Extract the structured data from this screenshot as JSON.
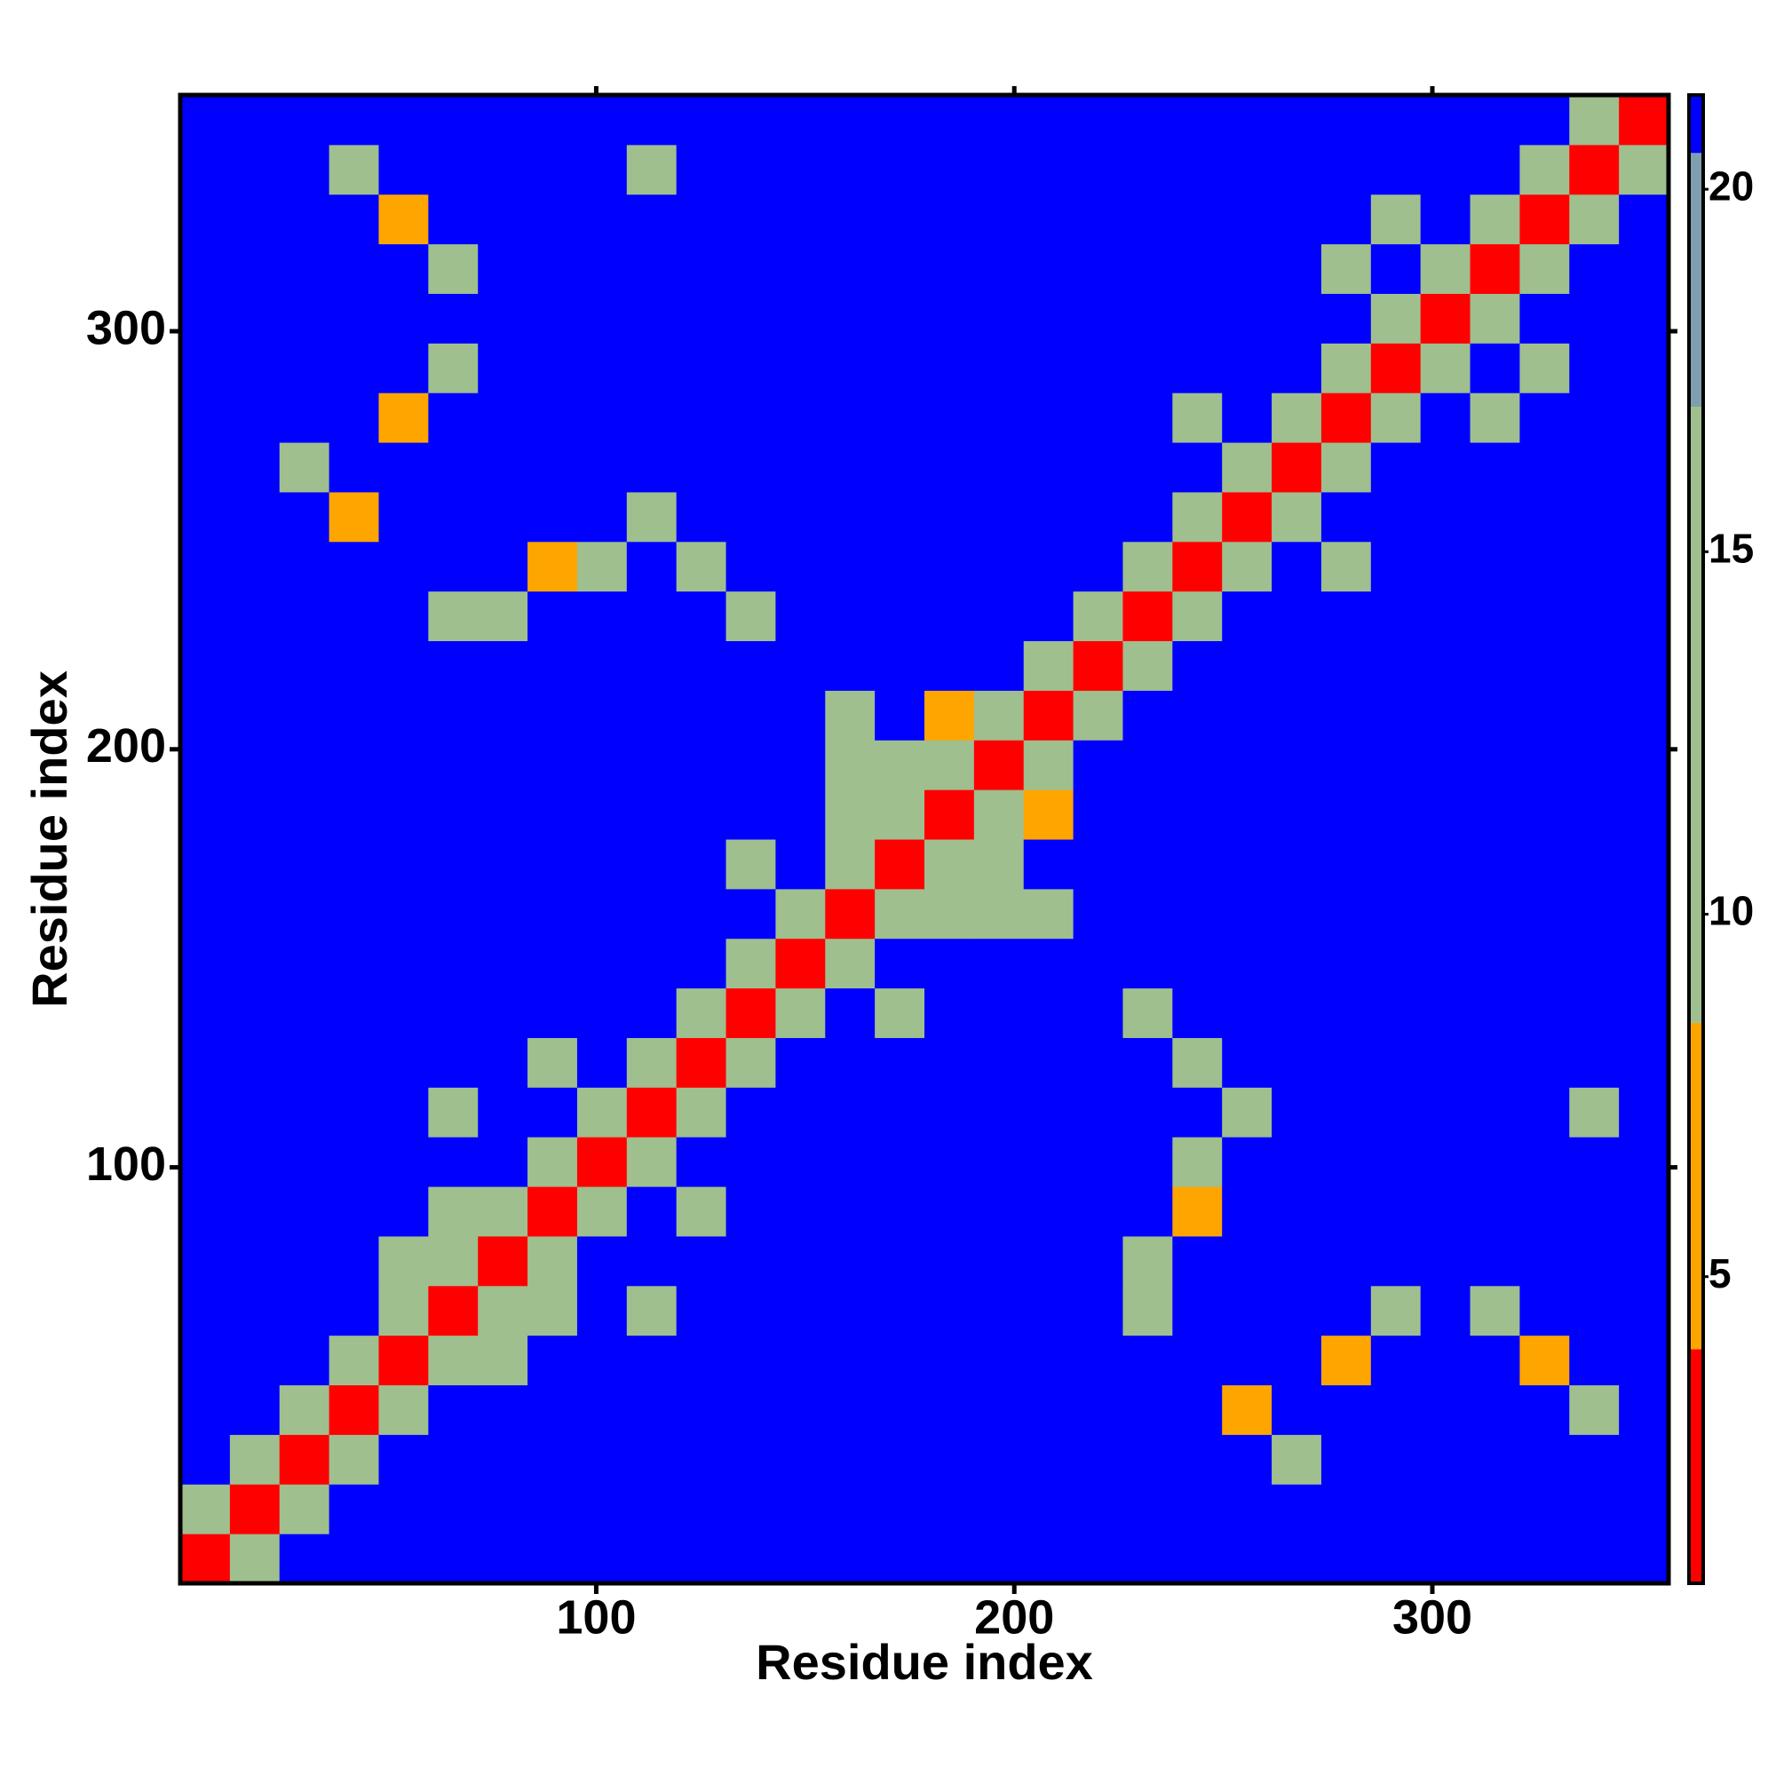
{
  "chart_data": {
    "type": "heatmap",
    "x_label": "Residue index",
    "y_label": "Residue index",
    "xlim": [
      0.5,
      356.5
    ],
    "ylim": [
      0.5,
      356.5
    ],
    "xticks": [
      100,
      200,
      300
    ],
    "yticks": [
      100,
      200,
      300
    ],
    "colorbar": {
      "lim": [
        0.77,
        21.3
      ],
      "ticks": [
        5,
        10,
        15,
        20
      ],
      "bounds": [
        0.77,
        4,
        8.5,
        17,
        20.5,
        21.3
      ],
      "colors": [
        "#ff0000",
        "#ffa500",
        "#9fbf8f",
        "#7f9faf",
        "#0000ff"
      ]
    },
    "z": [
      [
        2,
        12,
        22,
        22,
        22,
        22,
        22,
        22,
        22,
        22,
        22,
        22,
        22,
        22,
        22,
        22,
        22,
        22,
        22,
        22,
        22,
        22,
        22,
        22,
        22,
        22,
        22,
        22,
        22,
        22
      ],
      [
        12,
        2,
        12,
        22,
        22,
        22,
        22,
        22,
        22,
        22,
        22,
        22,
        22,
        22,
        22,
        22,
        22,
        22,
        22,
        22,
        22,
        22,
        22,
        22,
        22,
        22,
        22,
        22,
        22,
        22
      ],
      [
        22,
        12,
        2,
        12,
        22,
        22,
        22,
        22,
        22,
        22,
        22,
        22,
        22,
        22,
        22,
        22,
        22,
        22,
        22,
        22,
        22,
        22,
        12,
        22,
        22,
        22,
        22,
        22,
        22,
        22
      ],
      [
        22,
        22,
        12,
        2,
        12,
        22,
        22,
        22,
        22,
        22,
        22,
        22,
        22,
        22,
        22,
        22,
        22,
        22,
        22,
        22,
        22,
        7,
        22,
        22,
        22,
        22,
        22,
        22,
        12,
        22
      ],
      [
        22,
        22,
        22,
        12,
        2,
        12,
        12,
        22,
        22,
        22,
        22,
        22,
        22,
        22,
        22,
        22,
        22,
        22,
        22,
        22,
        22,
        22,
        22,
        7,
        22,
        22,
        22,
        7,
        22,
        22
      ],
      [
        22,
        22,
        22,
        22,
        12,
        2,
        12,
        12,
        22,
        12,
        22,
        22,
        22,
        22,
        22,
        22,
        22,
        22,
        22,
        12,
        22,
        22,
        22,
        22,
        12,
        22,
        12,
        22,
        22,
        22
      ],
      [
        22,
        22,
        22,
        22,
        12,
        12,
        2,
        12,
        22,
        22,
        22,
        22,
        22,
        22,
        22,
        22,
        22,
        22,
        22,
        12,
        22,
        22,
        22,
        22,
        22,
        22,
        22,
        22,
        22,
        22
      ],
      [
        22,
        22,
        22,
        22,
        22,
        12,
        12,
        2,
        12,
        22,
        12,
        22,
        22,
        22,
        22,
        22,
        22,
        22,
        22,
        22,
        7,
        22,
        22,
        22,
        22,
        22,
        22,
        22,
        22,
        22
      ],
      [
        22,
        22,
        22,
        22,
        22,
        22,
        22,
        12,
        2,
        12,
        22,
        22,
        22,
        22,
        22,
        22,
        22,
        22,
        22,
        22,
        12,
        22,
        22,
        22,
        22,
        22,
        22,
        22,
        22,
        22
      ],
      [
        22,
        22,
        22,
        22,
        22,
        12,
        22,
        22,
        12,
        2,
        12,
        22,
        22,
        22,
        22,
        22,
        22,
        22,
        22,
        22,
        22,
        12,
        22,
        22,
        22,
        22,
        22,
        22,
        12,
        22
      ],
      [
        22,
        22,
        22,
        22,
        22,
        22,
        22,
        12,
        22,
        12,
        2,
        12,
        22,
        22,
        22,
        22,
        22,
        22,
        22,
        22,
        12,
        22,
        22,
        22,
        22,
        22,
        22,
        22,
        22,
        22
      ],
      [
        22,
        22,
        22,
        22,
        22,
        22,
        22,
        22,
        22,
        22,
        12,
        2,
        12,
        22,
        12,
        22,
        22,
        22,
        22,
        12,
        22,
        22,
        22,
        22,
        22,
        22,
        22,
        22,
        22,
        22
      ],
      [
        22,
        22,
        22,
        22,
        22,
        22,
        22,
        22,
        22,
        22,
        22,
        12,
        2,
        12,
        22,
        22,
        22,
        22,
        22,
        22,
        22,
        22,
        22,
        22,
        22,
        22,
        22,
        22,
        22,
        22
      ],
      [
        22,
        22,
        22,
        22,
        22,
        22,
        22,
        22,
        22,
        22,
        22,
        22,
        12,
        2,
        12,
        12,
        12,
        12,
        22,
        22,
        22,
        22,
        22,
        22,
        22,
        22,
        22,
        22,
        22,
        22
      ],
      [
        22,
        22,
        22,
        22,
        22,
        22,
        22,
        22,
        22,
        22,
        22,
        12,
        22,
        12,
        2,
        12,
        12,
        22,
        22,
        22,
        22,
        22,
        22,
        22,
        22,
        22,
        22,
        22,
        22,
        22
      ],
      [
        22,
        22,
        22,
        22,
        22,
        22,
        22,
        22,
        22,
        22,
        22,
        22,
        22,
        12,
        12,
        2,
        12,
        7,
        22,
        22,
        22,
        22,
        22,
        22,
        22,
        22,
        22,
        22,
        22,
        22
      ],
      [
        22,
        22,
        22,
        22,
        22,
        22,
        22,
        22,
        22,
        22,
        22,
        22,
        22,
        12,
        12,
        12,
        2,
        12,
        22,
        22,
        22,
        22,
        22,
        22,
        22,
        22,
        22,
        22,
        22,
        22
      ],
      [
        22,
        22,
        22,
        22,
        22,
        22,
        22,
        22,
        22,
        22,
        22,
        22,
        22,
        12,
        22,
        7,
        12,
        2,
        12,
        22,
        22,
        22,
        22,
        22,
        22,
        22,
        22,
        22,
        22,
        22
      ],
      [
        22,
        22,
        22,
        22,
        22,
        22,
        22,
        22,
        22,
        22,
        22,
        22,
        22,
        22,
        22,
        22,
        22,
        12,
        2,
        12,
        22,
        22,
        22,
        22,
        22,
        22,
        22,
        22,
        22,
        22
      ],
      [
        22,
        22,
        22,
        22,
        22,
        12,
        12,
        22,
        22,
        22,
        22,
        12,
        22,
        22,
        22,
        22,
        22,
        22,
        12,
        2,
        12,
        22,
        22,
        22,
        22,
        22,
        22,
        22,
        22,
        22
      ],
      [
        22,
        22,
        22,
        22,
        22,
        22,
        22,
        7,
        12,
        22,
        12,
        22,
        22,
        22,
        22,
        22,
        22,
        22,
        22,
        12,
        2,
        12,
        22,
        12,
        22,
        22,
        22,
        22,
        22,
        22
      ],
      [
        22,
        22,
        22,
        7,
        22,
        22,
        22,
        22,
        22,
        12,
        22,
        22,
        22,
        22,
        22,
        22,
        22,
        22,
        22,
        22,
        12,
        2,
        12,
        22,
        22,
        22,
        22,
        22,
        22,
        22
      ],
      [
        22,
        22,
        12,
        22,
        22,
        22,
        22,
        22,
        22,
        22,
        22,
        22,
        22,
        22,
        22,
        22,
        22,
        22,
        22,
        22,
        22,
        12,
        2,
        12,
        22,
        22,
        22,
        22,
        22,
        22
      ],
      [
        22,
        22,
        22,
        22,
        7,
        22,
        22,
        22,
        22,
        22,
        22,
        22,
        22,
        22,
        22,
        22,
        22,
        22,
        22,
        22,
        12,
        22,
        12,
        2,
        12,
        22,
        12,
        22,
        22,
        22
      ],
      [
        22,
        22,
        22,
        22,
        22,
        12,
        22,
        22,
        22,
        22,
        22,
        22,
        22,
        22,
        22,
        22,
        22,
        22,
        22,
        22,
        22,
        22,
        22,
        12,
        2,
        12,
        22,
        12,
        22,
        22
      ],
      [
        22,
        22,
        22,
        22,
        22,
        22,
        22,
        22,
        22,
        22,
        22,
        22,
        22,
        22,
        22,
        22,
        22,
        22,
        22,
        22,
        22,
        22,
        22,
        22,
        12,
        2,
        12,
        22,
        22,
        22
      ],
      [
        22,
        22,
        22,
        22,
        22,
        12,
        22,
        22,
        22,
        22,
        22,
        22,
        22,
        22,
        22,
        22,
        22,
        22,
        22,
        22,
        22,
        22,
        22,
        12,
        22,
        12,
        2,
        12,
        22,
        22
      ],
      [
        22,
        22,
        22,
        22,
        7,
        22,
        22,
        22,
        22,
        22,
        22,
        22,
        22,
        22,
        22,
        22,
        22,
        22,
        22,
        22,
        22,
        22,
        22,
        22,
        12,
        22,
        12,
        2,
        12,
        22
      ],
      [
        22,
        22,
        22,
        12,
        22,
        22,
        22,
        22,
        22,
        12,
        22,
        22,
        22,
        22,
        22,
        22,
        22,
        22,
        22,
        22,
        22,
        22,
        22,
        22,
        22,
        22,
        22,
        12,
        2,
        12
      ],
      [
        22,
        22,
        22,
        22,
        22,
        22,
        22,
        22,
        22,
        22,
        22,
        22,
        22,
        22,
        22,
        22,
        22,
        22,
        22,
        22,
        22,
        22,
        22,
        22,
        22,
        22,
        22,
        22,
        12,
        2
      ]
    ]
  }
}
